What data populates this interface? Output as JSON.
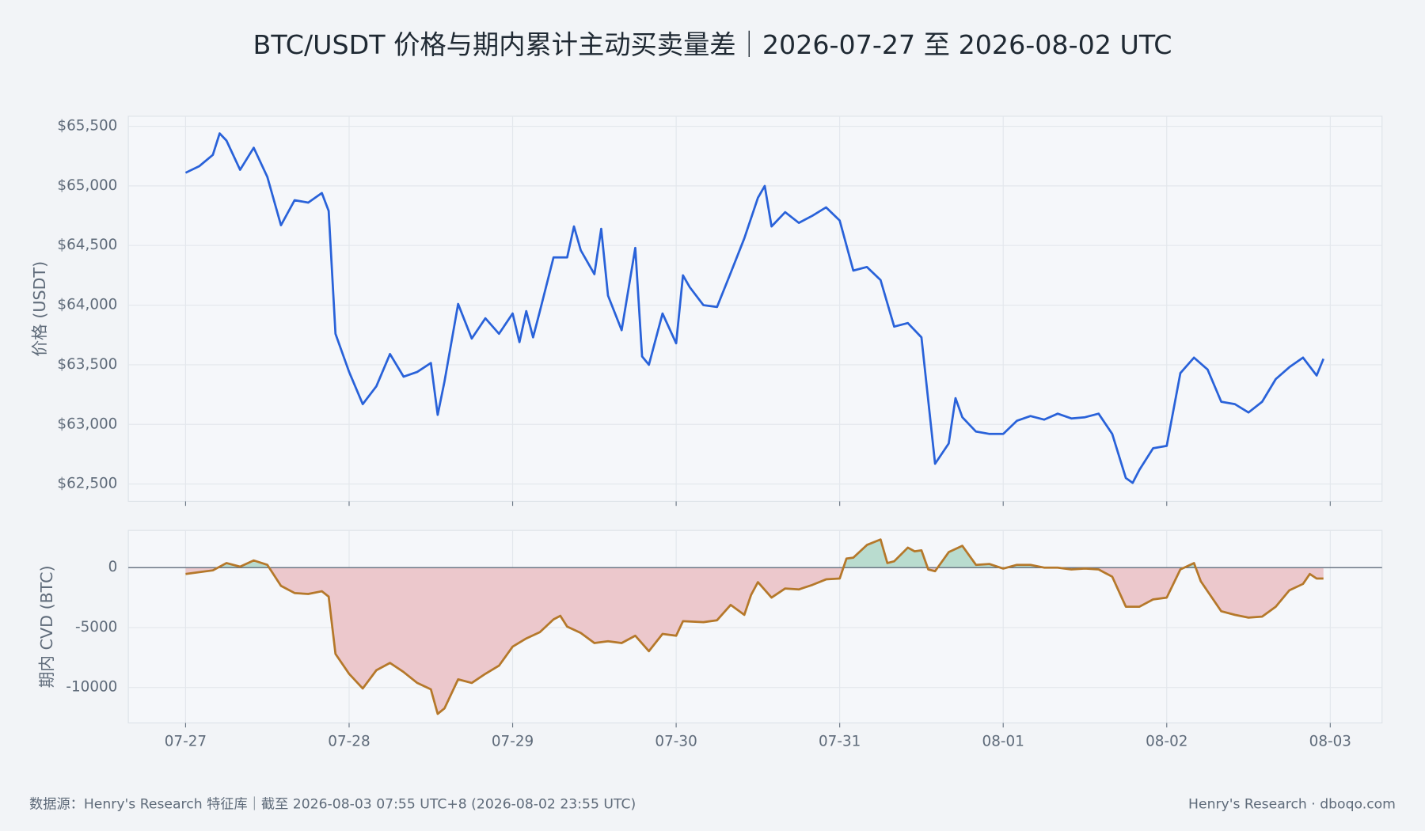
{
  "title": "BTC/USDT 价格与期内累计主动买卖量差｜2026-07-27 至 2026-08-02 UTC",
  "footer": {
    "source": "数据源：Henry's Research 特征库｜截至 2026-08-03 07:55 UTC+8 (2026-08-02 23:55 UTC)",
    "brand": "Henry's Research · dboqo.com"
  },
  "chart_data": [
    {
      "type": "line",
      "ylabel": "价格 (USDT)",
      "grid": true,
      "xlim": [
        -8.4,
        175.6
      ],
      "ylim": [
        62355,
        65584
      ],
      "yticks": [
        {
          "value": 62500,
          "label": "$62,500"
        },
        {
          "value": 63000,
          "label": "$63,000"
        },
        {
          "value": 63500,
          "label": "$63,500"
        },
        {
          "value": 64000,
          "label": "$64,000"
        },
        {
          "value": 64500,
          "label": "$64,500"
        },
        {
          "value": 65000,
          "label": "$65,000"
        },
        {
          "value": 65500,
          "label": "$65,500"
        }
      ],
      "x": [
        0,
        2,
        4,
        5,
        6,
        8,
        10,
        12,
        14,
        16,
        18,
        20,
        21,
        22,
        24,
        26,
        28,
        30,
        32,
        34,
        36,
        37,
        38,
        40,
        42,
        44,
        46,
        48,
        49,
        50,
        51,
        52,
        54,
        56,
        57,
        58,
        60,
        61,
        62,
        64,
        66,
        67,
        68,
        70,
        72,
        73,
        74,
        76,
        78,
        80,
        82,
        84,
        85,
        86,
        88,
        90,
        92,
        94,
        96,
        98,
        100,
        102,
        104,
        106,
        108,
        110,
        112,
        113,
        114,
        116,
        118,
        120,
        122,
        124,
        126,
        128,
        130,
        132,
        134,
        136,
        138,
        139,
        140,
        142,
        144,
        146,
        148,
        150,
        152,
        154,
        156,
        158,
        160,
        162,
        164,
        166,
        167
      ],
      "series": [
        {
          "name": "价格",
          "color": "#2962d9",
          "values": [
            65110,
            65165,
            65260,
            65440,
            65380,
            65135,
            65320,
            65075,
            64670,
            64880,
            64860,
            64940,
            64790,
            63760,
            63440,
            63170,
            63320,
            63590,
            63400,
            63440,
            63515,
            63080,
            63360,
            64010,
            63720,
            63890,
            63760,
            63930,
            63690,
            63950,
            63730,
            63950,
            64400,
            64400,
            64660,
            64460,
            64260,
            64640,
            64080,
            63790,
            64480,
            63570,
            63500,
            63930,
            63680,
            64250,
            64150,
            64000,
            63985,
            64270,
            64560,
            64900,
            65000,
            64660,
            64780,
            64690,
            64750,
            64820,
            64710,
            64290,
            64320,
            64210,
            63820,
            63850,
            63730,
            62670,
            62840,
            63220,
            63060,
            62940,
            62920,
            62920,
            63030,
            63070,
            63040,
            63090,
            63050,
            63060,
            63090,
            62920,
            62550,
            62510,
            62620,
            62800,
            62820,
            63430,
            63560,
            63460,
            63190,
            63170,
            63100,
            63190,
            63380,
            63480,
            63560,
            63410,
            63550
          ]
        }
      ]
    },
    {
      "type": "area",
      "ylabel": "期内 CVD (BTC)",
      "grid": true,
      "zero_line_color": "#6b7785",
      "xlim": [
        -8.4,
        175.6
      ],
      "ylim": [
        -12955,
        3106
      ],
      "yticks": [
        -10000,
        -5000,
        0
      ],
      "xticks": [
        {
          "value": 0,
          "label": "07-27"
        },
        {
          "value": 24,
          "label": "07-28"
        },
        {
          "value": 48,
          "label": "07-29"
        },
        {
          "value": 72,
          "label": "07-30"
        },
        {
          "value": 96,
          "label": "07-31"
        },
        {
          "value": 120,
          "label": "08-01"
        },
        {
          "value": 144,
          "label": "08-02"
        },
        {
          "value": 168,
          "label": "08-03"
        }
      ],
      "x": [
        0,
        4,
        6,
        8,
        10,
        12,
        14,
        16,
        18,
        20,
        21,
        22,
        24,
        26,
        28,
        30,
        32,
        34,
        36,
        37,
        38,
        40,
        42,
        44,
        46,
        48,
        50,
        52,
        54,
        55,
        56,
        58,
        60,
        62,
        64,
        66,
        68,
        70,
        72,
        73,
        76,
        78,
        80,
        82,
        83,
        84,
        86,
        88,
        90,
        92,
        94,
        96,
        97,
        98,
        100,
        102,
        103,
        104,
        106,
        107,
        108,
        109,
        110,
        112,
        114,
        116,
        118,
        120,
        122,
        124,
        126,
        128,
        130,
        132,
        134,
        136,
        138,
        140,
        142,
        144,
        146,
        148,
        149,
        152,
        154,
        156,
        158,
        160,
        162,
        164,
        165,
        166,
        167
      ],
      "series": [
        {
          "name": "期内 CVD",
          "color": "#b5782a",
          "positive_fill": "#b9dccf",
          "negative_fill": "#ecc8cc",
          "values": [
            -530,
            -230,
            380,
            80,
            600,
            230,
            -1520,
            -2120,
            -2200,
            -1970,
            -2420,
            -7200,
            -8860,
            -10080,
            -8560,
            -7950,
            -8710,
            -9620,
            -10150,
            -12200,
            -11740,
            -9320,
            -9620,
            -8860,
            -8180,
            -6590,
            -5910,
            -5380,
            -4320,
            -4020,
            -4920,
            -5450,
            -6290,
            -6140,
            -6290,
            -5680,
            -6970,
            -5530,
            -5680,
            -4470,
            -4550,
            -4390,
            -3110,
            -3940,
            -2270,
            -1210,
            -2500,
            -1740,
            -1820,
            -1440,
            -980,
            -910,
            760,
            830,
            1890,
            2350,
            380,
            530,
            1670,
            1360,
            1440,
            -150,
            -300,
            1290,
            1820,
            230,
            300,
            -80,
            230,
            230,
            0,
            0,
            -150,
            -80,
            -150,
            -760,
            -3260,
            -3260,
            -2650,
            -2500,
            -150,
            380,
            -1140,
            -3640,
            -3940,
            -4170,
            -4090,
            -3260,
            -1890,
            -1360,
            -530,
            -910,
            -910
          ]
        }
      ]
    }
  ]
}
